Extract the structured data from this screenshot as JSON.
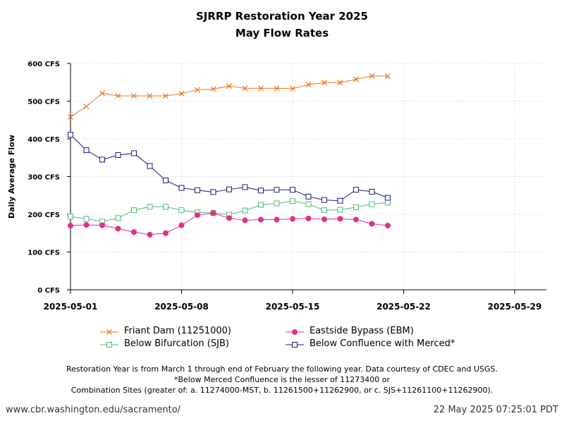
{
  "colors": {
    "friant": "#e8741c",
    "bifurcation": "#4cbb72",
    "eastside": "#e0308a",
    "confluence": "#1a1a7a",
    "grid": "#cccccc"
  },
  "footer": {
    "url": "www.cbr.washington.edu/sacramento/",
    "timestamp": "22 May 2025 07:25:01 PDT"
  },
  "footnote": [
    "Restoration Year is from March 1 through end of February the following year. Data courtesy of CDEC and USGS.",
    "*Below Merced Confluence is the lesser of 11273400 or",
    "Combination Sites (greater of: a. 11274000-MST, b. 11261500+11262900, or c. SJS+11261100+11262900)."
  ],
  "chart_data": {
    "type": "line",
    "title": "SJRRP Restoration Year 2025",
    "subtitle": "May Flow Rates",
    "xlabel": "",
    "ylabel": "Daily Average Flow",
    "x_start": "2025-05-01",
    "xlim": [
      "2025-05-01",
      "2025-05-31"
    ],
    "ylim": [
      0,
      600
    ],
    "x_ticks": [
      "2025-05-01",
      "2025-05-08",
      "2025-05-15",
      "2025-05-22",
      "2025-05-29"
    ],
    "y_ticks": [
      0,
      100,
      200,
      300,
      400,
      500,
      600
    ],
    "y_tick_labels": [
      "0 CFS",
      "100 CFS",
      "200 CFS",
      "300 CFS",
      "400 CFS",
      "500 CFS",
      "600 CFS"
    ],
    "grid": true,
    "legend_position": "bottom",
    "x": [
      "2025-05-01",
      "2025-05-02",
      "2025-05-03",
      "2025-05-04",
      "2025-05-05",
      "2025-05-06",
      "2025-05-07",
      "2025-05-08",
      "2025-05-09",
      "2025-05-10",
      "2025-05-11",
      "2025-05-12",
      "2025-05-13",
      "2025-05-14",
      "2025-05-15",
      "2025-05-16",
      "2025-05-17",
      "2025-05-18",
      "2025-05-19",
      "2025-05-20",
      "2025-05-21"
    ],
    "series": [
      {
        "name": "Friant Dam (11251000)",
        "color_key": "friant",
        "marker": "x",
        "values": [
          458,
          486,
          521,
          514,
          514,
          514,
          514,
          520,
          530,
          532,
          540,
          534,
          534,
          534,
          533,
          544,
          549,
          549,
          558,
          567,
          566
        ]
      },
      {
        "name": "Below Bifurcation (SJB)",
        "color_key": "bifurcation",
        "marker": "square-open",
        "values": [
          194,
          188,
          181,
          190,
          211,
          220,
          220,
          211,
          205,
          204,
          199,
          210,
          225,
          229,
          235,
          227,
          211,
          212,
          219,
          227,
          231
        ]
      },
      {
        "name": "Eastside Bypass (EBM)",
        "color_key": "eastside",
        "marker": "circle",
        "values": [
          170,
          172,
          171,
          162,
          153,
          146,
          150,
          171,
          198,
          203,
          190,
          184,
          186,
          186,
          188,
          189,
          187,
          188,
          186,
          175,
          170
        ]
      },
      {
        "name": "Below Confluence with Merced*",
        "color_key": "confluence",
        "marker": "square-open",
        "values": [
          411,
          370,
          345,
          357,
          362,
          328,
          290,
          270,
          264,
          259,
          266,
          272,
          263,
          265,
          265,
          247,
          238,
          236,
          265,
          260,
          244
        ]
      }
    ],
    "legend_order": [
      0,
      2,
      1,
      3
    ]
  }
}
